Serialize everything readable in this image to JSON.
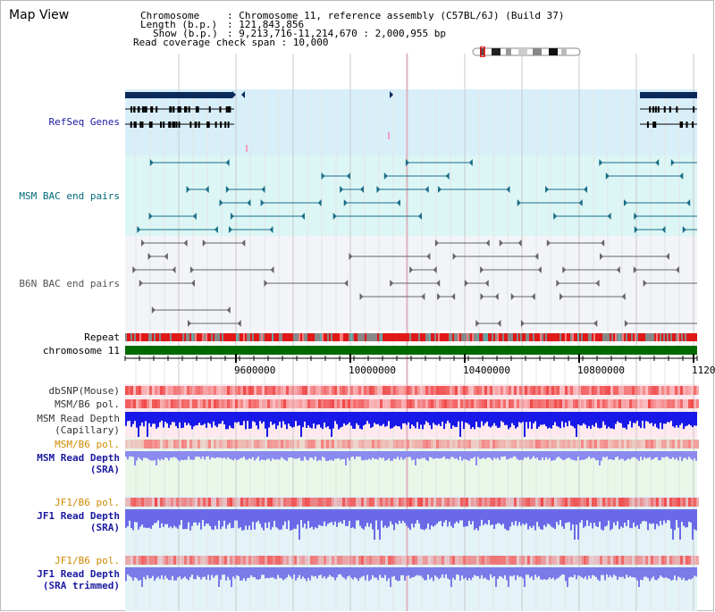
{
  "title": "Map View",
  "info": {
    "line1_key": "Chromosome",
    "line1_val": ": Chromosome 11, reference assembly (C57BL/6J) (Build 37)",
    "line2_key": "Length (b.p.)",
    "line2_val": ": 121,843,856",
    "line3_key": "Show (b.p.)",
    "line3_val": ": 9,213,716-11,214,670 : 2,000,955 bp",
    "line4": "Read coverage check span : 10,000"
  },
  "tracks": {
    "refseq": "RefSeq Genes",
    "msm_bac": "MSM BAC end pairs",
    "b6n_bac": "B6N BAC end pairs",
    "repeat": "Repeat",
    "chromosome": "chromosome 11",
    "dbsnp": "dbSNP(Mouse)",
    "msm_b6_pol": "MSM/B6 pol.",
    "msm_read_depth_cap_1": "MSM Read Depth",
    "msm_read_depth_cap_2": "(Capillary)",
    "msm_b6_pol_2": "MSM/B6 pol.",
    "msm_read_depth_sra_1": "MSM Read Depth",
    "msm_read_depth_sra_2": "(SRA)",
    "jf1_b6_pol": "JF1/B6 pol.",
    "jf1_read_depth_sra_1": "JF1 Read Depth",
    "jf1_read_depth_sra_2": "(SRA)",
    "jf1_b6_pol_2": "JF1/B6 pol.",
    "jf1_read_depth_trim_1": "JF1 Read Depth",
    "jf1_read_depth_trim_2": "(SRA trimmed)"
  },
  "axis": {
    "ticks": [
      "9600000",
      "10000000",
      "10400000",
      "10800000",
      "1120"
    ]
  },
  "colors": {
    "label_blue": "#1a1aa0",
    "label_teal": "#006a7a",
    "label_gray": "#555555",
    "label_orange": "#d08a00",
    "refseq_bg": "#d8effa",
    "msm_bg": "#dcf6f6",
    "b6n_bg": "#f2f4f8",
    "chrom_green": "#006a00"
  }
}
